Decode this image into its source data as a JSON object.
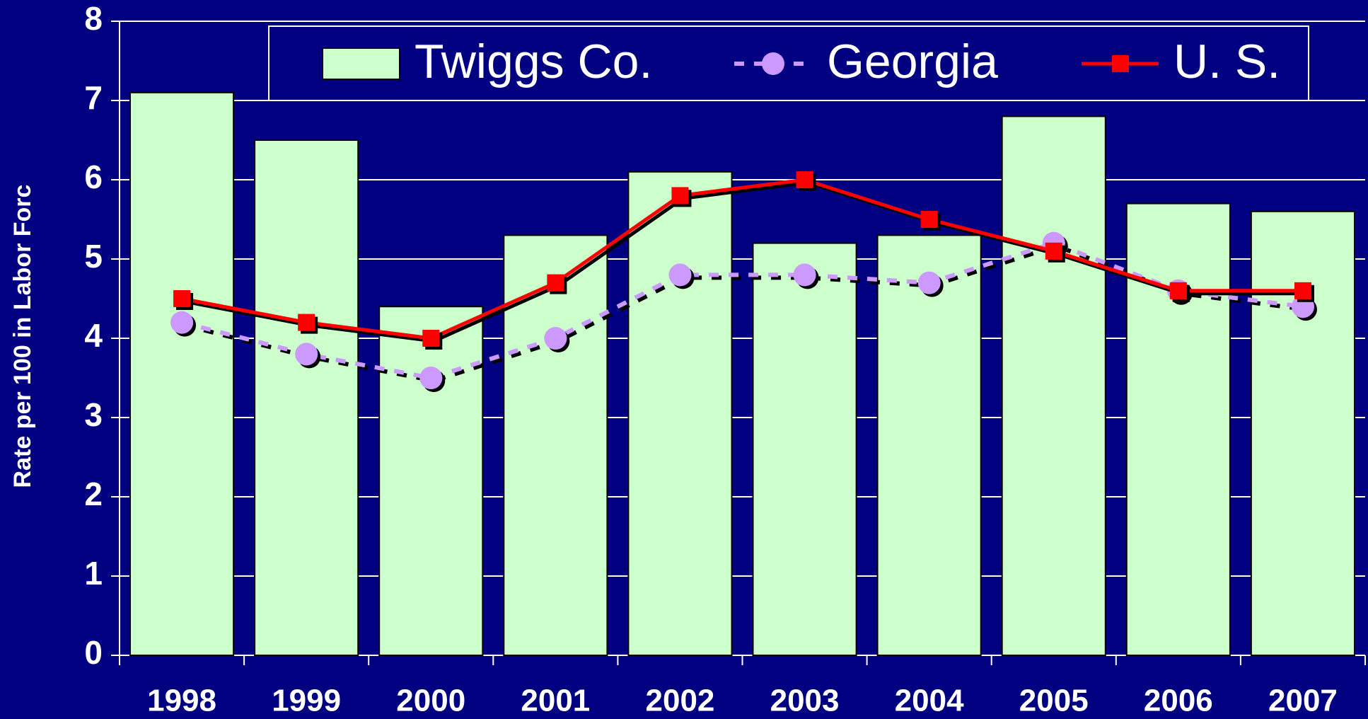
{
  "chart_data": {
    "type": "bar-line",
    "ylabel": "Rate per 100 in Labor Forc",
    "categories": [
      "1998",
      "1999",
      "2000",
      "2001",
      "2002",
      "2003",
      "2004",
      "2005",
      "2006",
      "2007"
    ],
    "series": [
      {
        "name": "Twiggs Co.",
        "type": "bar",
        "color": "#ccffcc",
        "values": [
          7.1,
          6.5,
          4.4,
          5.3,
          6.1,
          5.2,
          5.3,
          6.8,
          5.7,
          5.6
        ]
      },
      {
        "name": "Georgia",
        "type": "line",
        "style": "dashed",
        "marker": "circle",
        "color": "#cc99ff",
        "values": [
          4.2,
          3.8,
          3.5,
          4.0,
          4.8,
          4.8,
          4.7,
          5.2,
          4.6,
          4.4
        ]
      },
      {
        "name": "U. S.",
        "type": "line",
        "style": "solid",
        "marker": "square",
        "color": "#ff0000",
        "values": [
          4.5,
          4.2,
          4.0,
          4.7,
          5.8,
          6.0,
          5.5,
          5.1,
          4.6,
          4.6
        ]
      }
    ],
    "ylim": [
      0,
      8
    ],
    "yticks": [
      0,
      1,
      2,
      3,
      4,
      5,
      6,
      7,
      8
    ],
    "grid": true,
    "legend": "top"
  }
}
